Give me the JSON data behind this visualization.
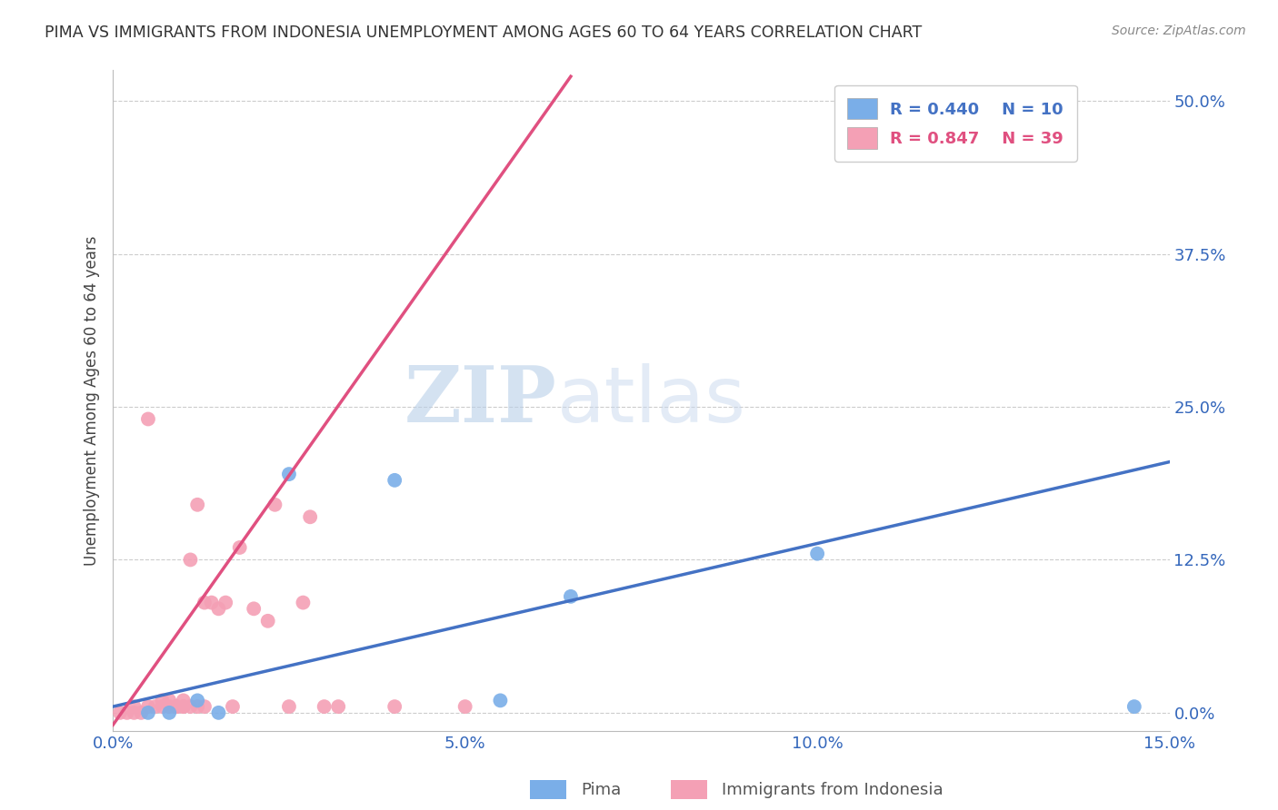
{
  "title": "PIMA VS IMMIGRANTS FROM INDONESIA UNEMPLOYMENT AMONG AGES 60 TO 64 YEARS CORRELATION CHART",
  "source_text": "Source: ZipAtlas.com",
  "ylabel": "Unemployment Among Ages 60 to 64 years",
  "watermark_zip": "ZIP",
  "watermark_atlas": "atlas",
  "xlim": [
    0.0,
    0.15
  ],
  "ylim": [
    -0.015,
    0.525
  ],
  "xticks": [
    0.0,
    0.05,
    0.1,
    0.15
  ],
  "xtick_labels": [
    "0.0%",
    "5.0%",
    "10.0%",
    "15.0%"
  ],
  "yticks": [
    0.0,
    0.125,
    0.25,
    0.375,
    0.5
  ],
  "ytick_labels": [
    "0.0%",
    "12.5%",
    "25.0%",
    "37.5%",
    "50.0%"
  ],
  "pima_color": "#7aaee8",
  "indonesia_color": "#f4a0b5",
  "pima_line_color": "#4472c4",
  "indonesia_line_color": "#e05080",
  "legend_r_pima": "R = 0.440",
  "legend_n_pima": "N = 10",
  "legend_r_indonesia": "R = 0.847",
  "legend_n_indonesia": "N = 39",
  "pima_x": [
    0.005,
    0.008,
    0.012,
    0.015,
    0.025,
    0.04,
    0.055,
    0.065,
    0.1,
    0.145
  ],
  "pima_y": [
    0.0,
    0.0,
    0.01,
    0.0,
    0.195,
    0.19,
    0.01,
    0.095,
    0.13,
    0.005
  ],
  "indonesia_x": [
    0.001,
    0.002,
    0.003,
    0.003,
    0.004,
    0.005,
    0.005,
    0.006,
    0.007,
    0.007,
    0.008,
    0.008,
    0.009,
    0.009,
    0.009,
    0.01,
    0.01,
    0.01,
    0.011,
    0.011,
    0.012,
    0.012,
    0.013,
    0.013,
    0.014,
    0.015,
    0.016,
    0.017,
    0.018,
    0.02,
    0.022,
    0.023,
    0.025,
    0.027,
    0.028,
    0.03,
    0.032,
    0.04,
    0.05
  ],
  "indonesia_y": [
    0.0,
    0.0,
    0.005,
    0.0,
    0.0,
    0.005,
    0.24,
    0.005,
    0.005,
    0.01,
    0.005,
    0.01,
    0.005,
    0.005,
    0.005,
    0.01,
    0.005,
    0.005,
    0.005,
    0.125,
    0.005,
    0.17,
    0.005,
    0.09,
    0.09,
    0.085,
    0.09,
    0.005,
    0.135,
    0.085,
    0.075,
    0.17,
    0.005,
    0.09,
    0.16,
    0.005,
    0.005,
    0.005,
    0.005
  ],
  "pima_line_x0": 0.0,
  "pima_line_y0": 0.005,
  "pima_line_x1": 0.15,
  "pima_line_y1": 0.205,
  "indo_line_x0": 0.0,
  "indo_line_y0": -0.01,
  "indo_line_x1": 0.065,
  "indo_line_y1": 0.52
}
